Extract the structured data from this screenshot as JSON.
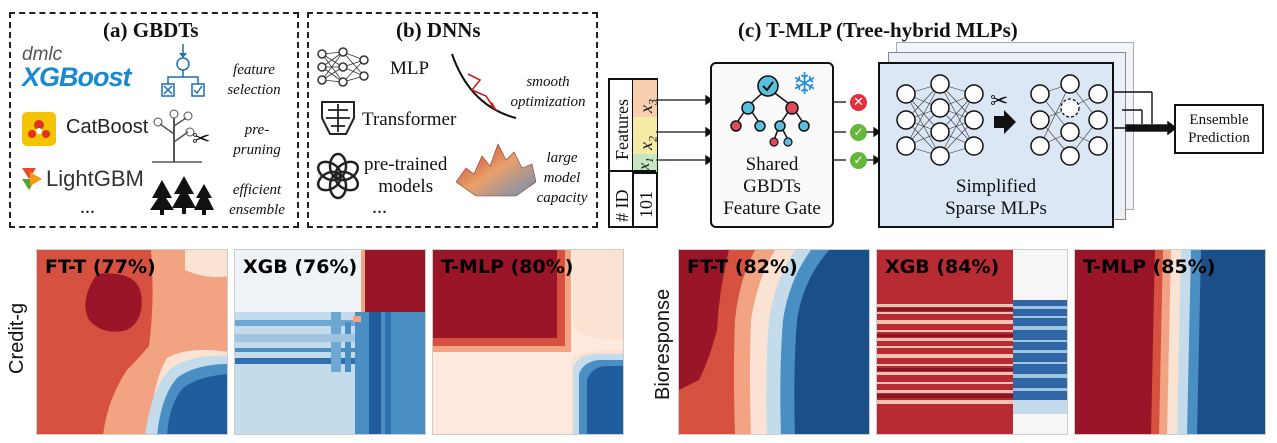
{
  "panel_a": {
    "title": "(a) GBDTs",
    "xgb_top": "dmlc",
    "xgb_main": "XGBoost",
    "catboost": "CatBoost",
    "lightgbm": "LightGBM",
    "ellipsis": "...",
    "feature_selection": [
      "feature",
      "selection"
    ],
    "pre_pruning": [
      "pre-",
      "pruning"
    ],
    "efficient_ensemble": [
      "efficient",
      "ensemble"
    ]
  },
  "panel_b": {
    "title": "(b) DNNs",
    "mlp": "MLP",
    "transformer": "Transformer",
    "pretrained": [
      "pre-trained",
      "models"
    ],
    "ellipsis": "...",
    "smooth_opt": [
      "smooth",
      "optimization"
    ],
    "large_cap": [
      "large",
      "model",
      "capacity"
    ]
  },
  "panel_c": {
    "title": "(c) T-MLP (Tree-hybrid MLPs)",
    "features_label": "Features",
    "id_label": "# ID",
    "id_value": "101",
    "x3": "x",
    "x2": "x",
    "x1": "x",
    "sub3": "3",
    "sub2": "2",
    "sub1": "1",
    "gate_label": [
      "Shared",
      "GBDTs",
      "Feature Gate"
    ],
    "mlp_label": [
      "Simplified",
      "Sparse MLPs"
    ],
    "ensemble_label": [
      "Ensemble",
      "Prediction"
    ]
  },
  "heatmaps": {
    "left_ylabel": "Credit-g",
    "right_ylabel": "Bioresponse",
    "credit": [
      {
        "label": "FT-T (77%)"
      },
      {
        "label": "XGB (76%)"
      },
      {
        "label": "T-MLP (80%)"
      }
    ],
    "bio": [
      {
        "label": "FT-T (82%)"
      },
      {
        "label": "XGB (84%)"
      },
      {
        "label": "T-MLP (85%)"
      }
    ]
  },
  "colors": {
    "dark_red": "#9b1528",
    "red": "#d6513f",
    "salmon": "#f2a482",
    "light": "#fbe3d4",
    "pale": "#eef3f7",
    "light_blue": "#c3dbeb",
    "blue": "#4a8fc4",
    "dark_blue": "#1f5d9c",
    "navy": "#1b4f8a",
    "gate_bg": "#fafafa",
    "mlp_bg": "#dbe7f5"
  }
}
